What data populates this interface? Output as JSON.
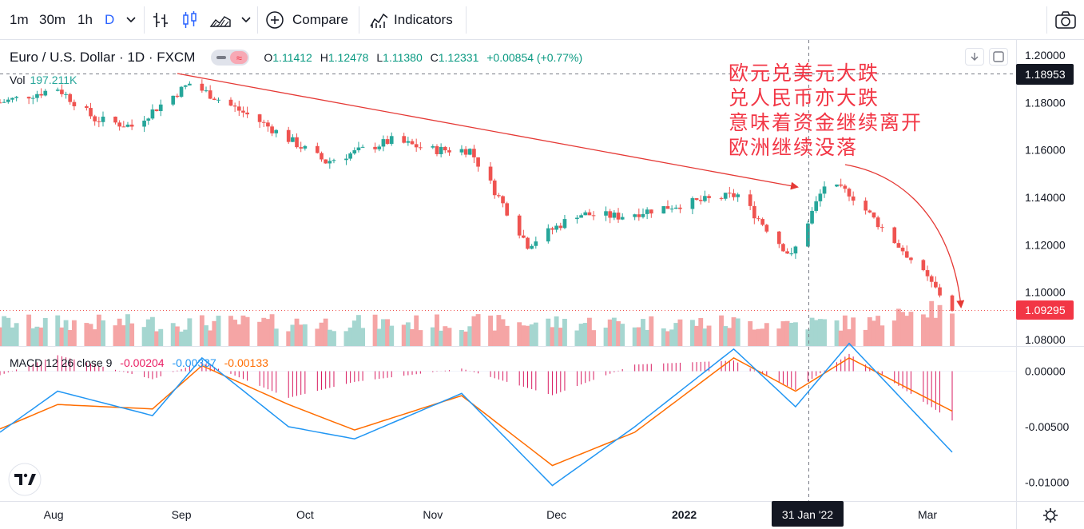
{
  "toolbar": {
    "intervals": [
      "1m",
      "30m",
      "1h",
      "D"
    ],
    "compare_label": "Compare",
    "indicators_label": "Indicators"
  },
  "legend": {
    "symbol": "Euro / U.S. Dollar · 1D · FXCM",
    "open_key": "O",
    "open": "1.11412",
    "high_key": "H",
    "high": "1.12478",
    "low_key": "L",
    "low": "1.11380",
    "close_key": "C",
    "close": "1.12331",
    "change": "+0.00854 (+0.77%)",
    "mode_icon": "approx-icon"
  },
  "volume": {
    "label": "Vol",
    "value": "197.211K"
  },
  "macd_legend": {
    "label": "MACD 12 26 close 9",
    "hist": "-0.00204",
    "macd": "-0.00337",
    "signal": "-0.00133"
  },
  "annotation": [
    "欧元兑美元大跌",
    "兑人民币亦大跌",
    "意味着资金继续离开",
    "欧洲继续没落"
  ],
  "price_axis": {
    "ticks": [
      "1.20000",
      "1.18000",
      "1.16000",
      "1.14000",
      "1.12000",
      "1.10000",
      "1.08000"
    ],
    "crosshair_label": "1.18953",
    "last_price_label": "1.09295"
  },
  "macd_axis": {
    "ticks": [
      "0.00000",
      "-0.00500",
      "-0.01000"
    ]
  },
  "time_axis": {
    "ticks": [
      "Aug",
      "Sep",
      "Oct",
      "Nov",
      "Dec",
      "2022",
      "Mar"
    ],
    "crosshair_label": "31 Jan '22"
  },
  "colors": {
    "up": "#26a69a",
    "down": "#ef5350",
    "macd": "#2196f3",
    "signal": "#ff6d00",
    "hist": "#d81b60",
    "annotation": "#f23645",
    "accent": "#2962ff"
  },
  "chart_data": {
    "type": "candlestick",
    "symbol": "EUR/USD",
    "interval": "1D",
    "price_range": [
      1.077,
      1.203
    ],
    "key_points": [
      {
        "x": "2021-07-19",
        "close": 1.18
      },
      {
        "x": "2021-08-02",
        "close": 1.186
      },
      {
        "x": "2021-08-11",
        "close": 1.173
      },
      {
        "x": "2021-08-20",
        "close": 1.17
      },
      {
        "x": "2021-09-03",
        "close": 1.188
      },
      {
        "x": "2021-09-20",
        "close": 1.172
      },
      {
        "x": "2021-10-06",
        "close": 1.155
      },
      {
        "x": "2021-10-22",
        "close": 1.164
      },
      {
        "x": "2021-11-01",
        "close": 1.16
      },
      {
        "x": "2021-11-10",
        "close": 1.16
      },
      {
        "x": "2021-11-24",
        "close": 1.12
      },
      {
        "x": "2021-12-06",
        "close": 1.133
      },
      {
        "x": "2021-12-16",
        "close": 1.132
      },
      {
        "x": "2021-12-31",
        "close": 1.137
      },
      {
        "x": "2022-01-14",
        "close": 1.141
      },
      {
        "x": "2022-01-27",
        "close": 1.115
      },
      {
        "x": "2022-02-04",
        "close": 1.145
      },
      {
        "x": "2022-02-10",
        "close": 1.142
      },
      {
        "x": "2022-02-24",
        "close": 1.116
      },
      {
        "x": "2022-03-07",
        "close": 1.093
      }
    ],
    "macd_key_points": [
      {
        "x": "2021-07-19",
        "macd": -0.0055,
        "signal": -0.0052
      },
      {
        "x": "2021-08-02",
        "macd": -0.0018,
        "signal": -0.003
      },
      {
        "x": "2021-08-25",
        "macd": -0.004,
        "signal": -0.0034
      },
      {
        "x": "2021-09-06",
        "macd": 0.0012,
        "signal": 0.0005
      },
      {
        "x": "2021-09-27",
        "macd": -0.005,
        "signal": -0.003
      },
      {
        "x": "2021-10-13",
        "macd": -0.0061,
        "signal": -0.0053
      },
      {
        "x": "2021-11-08",
        "macd": -0.002,
        "signal": -0.0022
      },
      {
        "x": "2021-11-30",
        "macd": -0.0103,
        "signal": -0.0085
      },
      {
        "x": "2021-12-20",
        "macd": -0.005,
        "signal": -0.0055
      },
      {
        "x": "2022-01-13",
        "macd": 0.002,
        "signal": 0.0012
      },
      {
        "x": "2022-01-28",
        "macd": -0.0032,
        "signal": -0.0018
      },
      {
        "x": "2022-02-10",
        "macd": 0.0025,
        "signal": 0.0012
      },
      {
        "x": "2022-03-07",
        "macd": -0.0073,
        "signal": -0.0036
      }
    ],
    "macd_range": [
      -0.0117,
      0.0022
    ]
  }
}
